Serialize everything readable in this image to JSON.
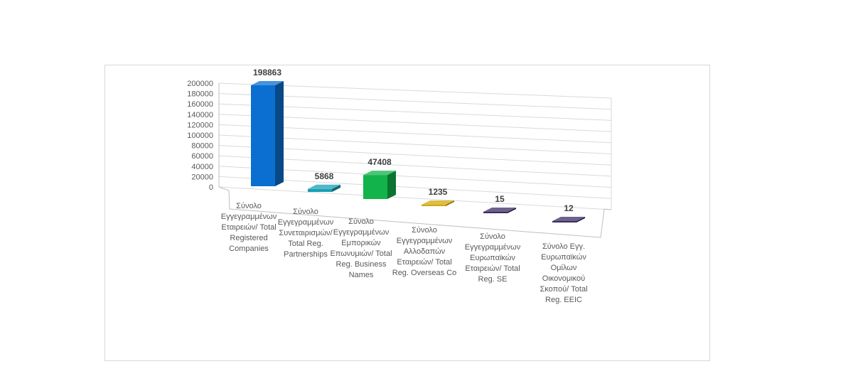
{
  "chart_data": {
    "type": "bar",
    "style": "3d-column",
    "grid": true,
    "ylim": [
      0,
      200000
    ],
    "yticks": [
      "200000",
      "180000",
      "160000",
      "140000",
      "120000",
      "100000",
      "80000",
      "60000",
      "40000",
      "20000",
      "0"
    ],
    "categories": [
      [
        "Σύνολο",
        "Εγγεγραμμένων",
        "Εταιρειών/ Total",
        "Registered",
        "Companies"
      ],
      [
        "Σύνολο",
        "Εγγεγραμμένων",
        "Συνεταιρισμών/",
        "Total Reg.",
        "Partnerships"
      ],
      [
        "Σύνολο",
        "Εγγεγραμμένων",
        "Εμπορικών",
        "Επωνυμιών/ Total",
        "Reg. Business",
        "Names"
      ],
      [
        "Σύνολο",
        "Εγγεγραμμένων",
        "Αλλοδαπών",
        "Εταιρειών/ Total",
        "Reg. Overseas Co"
      ],
      [
        "Σύνολο",
        "Εγγεγραμμένων",
        "Ευρωπαϊκών",
        "Εταιρειών/ Total",
        "Reg. SE"
      ],
      [
        "Σύνολο Εγγ.",
        "Ευρωπαϊκών",
        "Ομίλων",
        "Οικονομικού",
        "Σκοπού/ Total",
        "Reg. EEIC"
      ]
    ],
    "values": [
      198863,
      5868,
      47408,
      1235,
      15,
      12
    ],
    "data_labels": [
      "198863",
      "5868",
      "47408",
      "1235",
      "15",
      "12"
    ],
    "colors": [
      "#0a6fd0",
      "#1a9fb5",
      "#12b34a",
      "#d4a80b",
      "#3b2d63",
      "#3b2d63"
    ]
  }
}
